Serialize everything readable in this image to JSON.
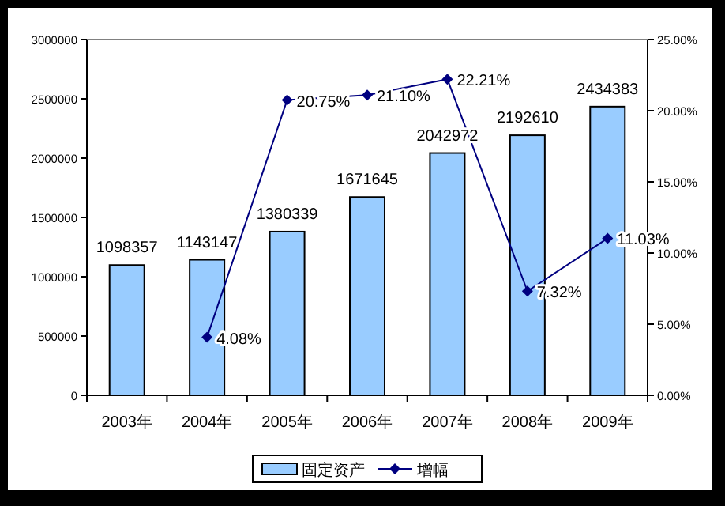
{
  "chart_data": {
    "type": "bar",
    "categories": [
      "2003年",
      "2004年",
      "2005年",
      "2006年",
      "2007年",
      "2008年",
      "2009年"
    ],
    "series": [
      {
        "name": "固定资产",
        "color": "#99ccff",
        "values": [
          1098357,
          1143147,
          1380339,
          1671645,
          2042972,
          2192610,
          2434383
        ],
        "value_labels": [
          "1098357",
          "1143147",
          "1380339",
          "1671645",
          "2042972",
          "2192610",
          "2434383"
        ]
      },
      {
        "name": "增幅",
        "type": "line",
        "axis": "y2",
        "color": "#000080",
        "values": [
          null,
          4.08,
          20.75,
          21.1,
          22.21,
          7.32,
          11.03
        ],
        "value_labels": [
          null,
          "4.08%",
          "20.75%",
          "21.10%",
          "22.21%",
          "7.32%",
          "11.03%"
        ]
      }
    ],
    "ylim": [
      0,
      3000000
    ],
    "yticks": [
      0,
      500000,
      1000000,
      1500000,
      2000000,
      2500000,
      3000000
    ],
    "y2lim": [
      0,
      25
    ],
    "y2ticks": [
      {
        "value": 0,
        "label": "0.00%"
      },
      {
        "value": 5,
        "label": "5.00%"
      },
      {
        "value": 10,
        "label": "10.00%"
      },
      {
        "value": 15,
        "label": "15.00%"
      },
      {
        "value": 20,
        "label": "20.00%"
      },
      {
        "value": 25,
        "label": "25.00%"
      }
    ],
    "marker": "diamond",
    "legend": "bottom",
    "line_style": "solid"
  }
}
